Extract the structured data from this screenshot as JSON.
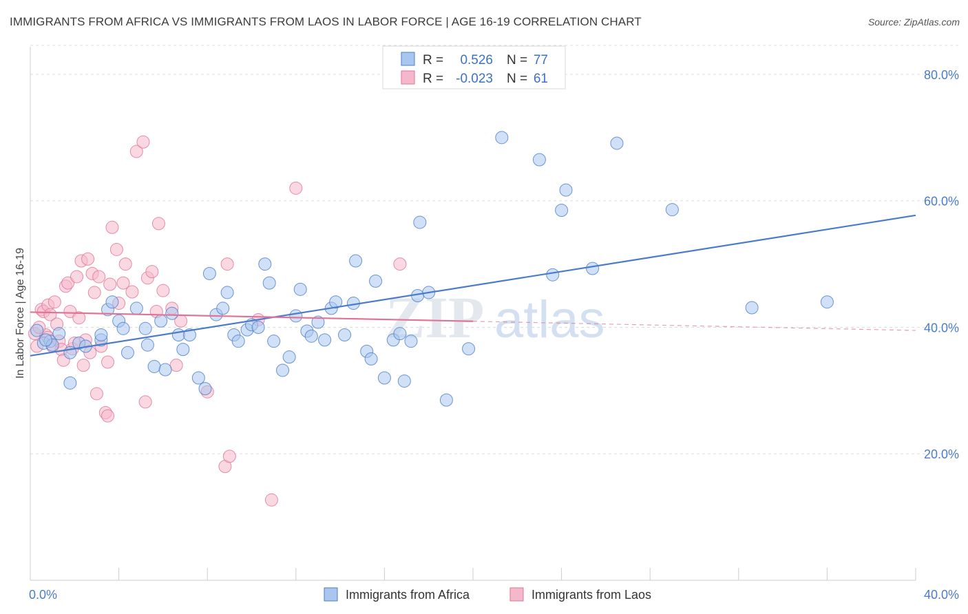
{
  "title": "IMMIGRANTS FROM AFRICA VS IMMIGRANTS FROM LAOS IN LABOR FORCE | AGE 16-19 CORRELATION CHART",
  "source": "Source: ZipAtlas.com",
  "watermark": {
    "zip": "ZIP",
    "atlas": "atlas"
  },
  "colors": {
    "africa": "#4a7cc9",
    "africa_fill": "#a9c6ee",
    "laos": "#e07396",
    "laos_fill": "#f5b8cb",
    "axis_label": "#4a7cc9"
  },
  "chart_data": {
    "type": "scatter",
    "xlabel": "",
    "ylabel": "In Labor Force | Age 16-19",
    "xlim": [
      0,
      40
    ],
    "ylim": [
      0,
      85
    ],
    "x_tick_labels": [
      "0.0%",
      "40.0%"
    ],
    "y_ticks": [
      {
        "value": 20,
        "label": "20.0%"
      },
      {
        "value": 40,
        "label": "40.0%"
      },
      {
        "value": 60,
        "label": "60.0%"
      },
      {
        "value": 80,
        "label": "80.0%"
      }
    ],
    "grid": "horizontal dashed",
    "legend_stats": [
      {
        "r_label": "R =",
        "r_value": "0.526",
        "n_label": "N =",
        "n_value": "77"
      },
      {
        "r_label": "R =",
        "r_value": "-0.023",
        "n_label": "N =",
        "n_value": "61"
      }
    ],
    "series": [
      {
        "name": "Immigrants from Africa",
        "trend": {
          "x": [
            0,
            40
          ],
          "y": [
            35.5,
            57.7
          ],
          "dashed_from": null
        },
        "points": [
          [
            0.3,
            39.5
          ],
          [
            0.6,
            37.5
          ],
          [
            0.9,
            37.8
          ],
          [
            1.0,
            37.2
          ],
          [
            1.3,
            39.0
          ],
          [
            1.8,
            36.0
          ],
          [
            2.2,
            37.5
          ],
          [
            0.7,
            38.0
          ],
          [
            1.8,
            31.2
          ],
          [
            2.5,
            37.0
          ],
          [
            3.2,
            38.0
          ],
          [
            3.2,
            38.8
          ],
          [
            3.5,
            42.8
          ],
          [
            3.7,
            44.0
          ],
          [
            4.0,
            41.0
          ],
          [
            4.2,
            39.8
          ],
          [
            4.4,
            36.0
          ],
          [
            4.8,
            43.0
          ],
          [
            5.2,
            39.8
          ],
          [
            5.3,
            37.2
          ],
          [
            5.6,
            33.8
          ],
          [
            5.9,
            41.0
          ],
          [
            6.1,
            33.3
          ],
          [
            6.4,
            42.2
          ],
          [
            6.7,
            38.8
          ],
          [
            6.9,
            36.5
          ],
          [
            7.2,
            38.8
          ],
          [
            7.6,
            32.0
          ],
          [
            7.9,
            30.3
          ],
          [
            8.1,
            48.5
          ],
          [
            8.4,
            42.0
          ],
          [
            8.7,
            43.0
          ],
          [
            8.9,
            45.5
          ],
          [
            9.2,
            38.8
          ],
          [
            9.4,
            37.8
          ],
          [
            9.8,
            39.6
          ],
          [
            10.0,
            40.4
          ],
          [
            10.3,
            40.0
          ],
          [
            10.6,
            50.0
          ],
          [
            10.8,
            47.0
          ],
          [
            11.0,
            37.8
          ],
          [
            11.4,
            33.2
          ],
          [
            11.7,
            35.3
          ],
          [
            12.0,
            41.8
          ],
          [
            12.2,
            46.0
          ],
          [
            12.5,
            39.4
          ],
          [
            12.7,
            38.6
          ],
          [
            13.0,
            40.8
          ],
          [
            13.3,
            38.0
          ],
          [
            13.6,
            43.0
          ],
          [
            13.8,
            44.0
          ],
          [
            14.2,
            38.8
          ],
          [
            14.6,
            43.8
          ],
          [
            14.7,
            50.5
          ],
          [
            15.2,
            36.2
          ],
          [
            15.4,
            35.0
          ],
          [
            15.6,
            47.3
          ],
          [
            16.0,
            32.0
          ],
          [
            16.4,
            38.0
          ],
          [
            16.7,
            39.0
          ],
          [
            16.9,
            31.5
          ],
          [
            17.2,
            37.8
          ],
          [
            17.5,
            45.0
          ],
          [
            17.6,
            56.6
          ],
          [
            18.0,
            45.5
          ],
          [
            18.8,
            28.5
          ],
          [
            19.8,
            36.6
          ],
          [
            21.3,
            70.0
          ],
          [
            23.0,
            66.5
          ],
          [
            23.6,
            48.3
          ],
          [
            24.0,
            58.5
          ],
          [
            24.2,
            61.7
          ],
          [
            25.4,
            49.3
          ],
          [
            26.5,
            69.1
          ],
          [
            29.0,
            58.6
          ],
          [
            32.6,
            43.1
          ],
          [
            36.0,
            44.0
          ]
        ]
      },
      {
        "name": "Immigrants from Laos",
        "trend": {
          "x": [
            0,
            40
          ],
          "y": [
            42.4,
            39.5
          ],
          "dashed_from": 20
        },
        "points": [
          [
            0.2,
            39.0
          ],
          [
            0.3,
            37.0
          ],
          [
            0.5,
            42.8
          ],
          [
            0.6,
            42.5
          ],
          [
            0.7,
            38.8
          ],
          [
            0.8,
            43.5
          ],
          [
            0.9,
            42.0
          ],
          [
            1.0,
            37.0
          ],
          [
            1.2,
            40.5
          ],
          [
            1.3,
            37.8
          ],
          [
            1.4,
            36.5
          ],
          [
            1.5,
            34.8
          ],
          [
            1.6,
            46.5
          ],
          [
            1.7,
            47.0
          ],
          [
            1.8,
            42.5
          ],
          [
            1.9,
            36.6
          ],
          [
            2.1,
            48.0
          ],
          [
            2.2,
            41.5
          ],
          [
            2.3,
            50.5
          ],
          [
            2.5,
            38.0
          ],
          [
            2.6,
            50.8
          ],
          [
            2.7,
            36.0
          ],
          [
            2.8,
            48.5
          ],
          [
            2.9,
            45.5
          ],
          [
            3.0,
            29.5
          ],
          [
            3.1,
            48.0
          ],
          [
            3.2,
            37.0
          ],
          [
            3.4,
            26.5
          ],
          [
            3.5,
            34.5
          ],
          [
            3.5,
            26.0
          ],
          [
            3.6,
            46.8
          ],
          [
            3.7,
            55.8
          ],
          [
            3.9,
            52.3
          ],
          [
            4.0,
            43.8
          ],
          [
            4.2,
            47.0
          ],
          [
            4.3,
            50.0
          ],
          [
            4.6,
            45.6
          ],
          [
            4.8,
            67.8
          ],
          [
            5.1,
            69.3
          ],
          [
            5.2,
            28.2
          ],
          [
            5.3,
            47.8
          ],
          [
            5.5,
            48.8
          ],
          [
            5.8,
            56.4
          ],
          [
            6.0,
            45.8
          ],
          [
            6.4,
            43.0
          ],
          [
            6.6,
            34.0
          ],
          [
            6.8,
            41.0
          ],
          [
            8.0,
            29.8
          ],
          [
            8.8,
            18.0
          ],
          [
            8.9,
            50.0
          ],
          [
            9.0,
            19.6
          ],
          [
            10.3,
            41.2
          ],
          [
            10.9,
            12.7
          ],
          [
            12.0,
            62.0
          ],
          [
            16.7,
            50.0
          ],
          [
            5.7,
            42.5
          ],
          [
            2.0,
            37.5
          ],
          [
            1.1,
            44.0
          ],
          [
            0.4,
            40.0
          ],
          [
            0.8,
            38.4
          ],
          [
            2.4,
            34.0
          ]
        ]
      }
    ]
  }
}
